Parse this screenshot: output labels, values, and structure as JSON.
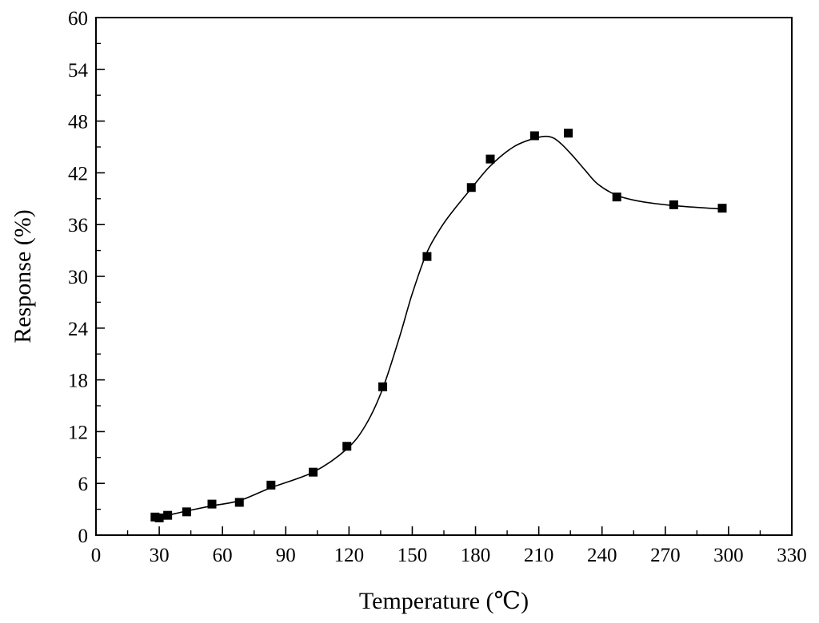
{
  "chart_data": {
    "type": "scatter",
    "xlabel": "Temperature (℃)",
    "ylabel": "Response (%)",
    "xlim": [
      0,
      330
    ],
    "ylim": [
      0,
      60
    ],
    "x_ticks": [
      0,
      30,
      60,
      90,
      120,
      150,
      180,
      210,
      240,
      270,
      300,
      330
    ],
    "y_ticks": [
      0,
      6,
      12,
      18,
      24,
      30,
      36,
      42,
      48,
      54,
      60
    ],
    "grid": false,
    "legend": "none",
    "marker": "square",
    "marker_color": "#000000",
    "line_color": "#000000",
    "points": {
      "x": [
        28,
        30,
        34,
        43,
        55,
        68,
        83,
        103,
        119,
        136,
        157,
        178,
        187,
        208,
        224,
        247,
        274,
        297
      ],
      "y": [
        2.1,
        2.0,
        2.3,
        2.7,
        3.6,
        3.8,
        5.8,
        7.3,
        10.3,
        17.2,
        32.3,
        40.3,
        43.6,
        46.3,
        46.6,
        39.2,
        38.3,
        37.9
      ]
    },
    "fit_curve": {
      "x": [
        28,
        30,
        34,
        43,
        55,
        68,
        83,
        103,
        119,
        128,
        136,
        144,
        150,
        157,
        164,
        170,
        178,
        187,
        198,
        208,
        215,
        220,
        226,
        232,
        238,
        247,
        258,
        274,
        297
      ],
      "y": [
        1.9,
        2.1,
        2.3,
        2.8,
        3.4,
        4.0,
        5.5,
        7.3,
        10.0,
        12.8,
        17.0,
        23.0,
        28.0,
        32.8,
        35.8,
        37.8,
        40.2,
        42.8,
        45.0,
        46.0,
        46.2,
        45.5,
        44.0,
        42.3,
        40.7,
        39.4,
        38.7,
        38.2,
        37.8
      ]
    }
  }
}
